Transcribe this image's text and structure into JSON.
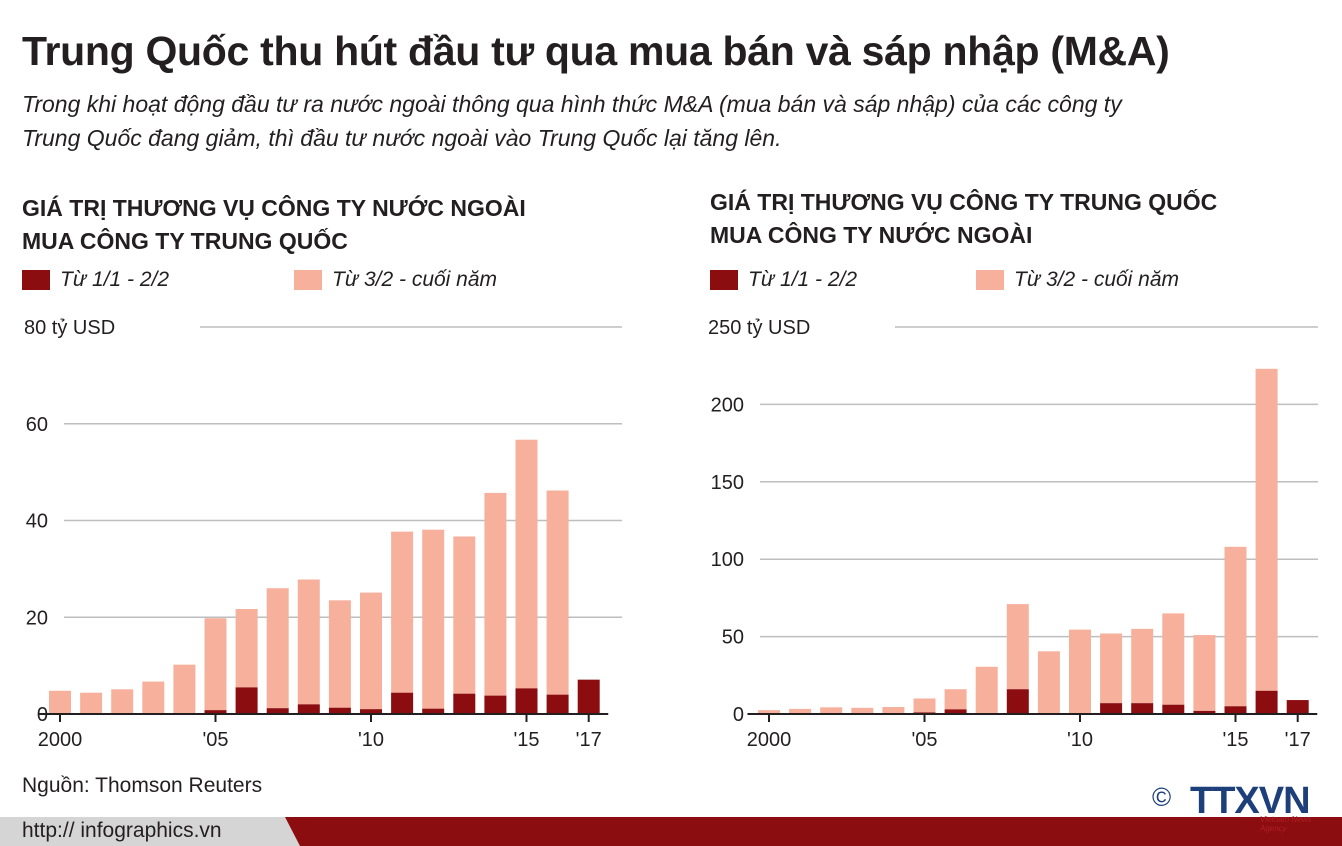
{
  "header": {
    "title": "Trung Quốc thu hút đầu tư qua mua bán và sáp nhập (M&A)",
    "subtitle_line1": "Trong khi hoạt động đầu tư ra nước ngoài thông qua hình thức M&A (mua bán và sáp nhập) của các công ty",
    "subtitle_line2": "Trung Quốc đang giảm, thì đầu tư nước ngoài vào Trung Quốc lại tăng lên."
  },
  "charts": [
    {
      "title_line1": "GIÁ TRỊ THƯƠNG VỤ CÔNG TY NƯỚC NGOÀI",
      "title_line2": "MUA CÔNG TY TRUNG QUỐC",
      "legend": [
        "Từ 1/1 - 2/2",
        "Từ 3/2 - cuối năm"
      ],
      "y_unit": "tỷ USD"
    },
    {
      "title_line1": "GIÁ TRỊ THƯƠNG VỤ CÔNG TY TRUNG QUỐC",
      "title_line2": "MUA CÔNG TY NƯỚC NGOÀI",
      "legend": [
        "Từ 1/1 - 2/2",
        "Từ 3/2 - cuối năm"
      ],
      "y_unit": "tỷ USD"
    }
  ],
  "chart_data": [
    {
      "type": "bar",
      "stacked": true,
      "title": "GIÁ TRỊ THƯƠNG VỤ CÔNG TY NƯỚC NGOÀI MUA CÔNG TY TRUNG QUỐC",
      "ylabel": "tỷ USD",
      "categories": [
        "2000",
        "2001",
        "2002",
        "2003",
        "2004",
        "2005",
        "2006",
        "2007",
        "2008",
        "2009",
        "2010",
        "2011",
        "2012",
        "2013",
        "2014",
        "2015",
        "2016",
        "2017"
      ],
      "x_tick_labels": [
        "2000",
        "'05",
        "'10",
        "'15",
        "'17"
      ],
      "x_tick_categories": [
        "2000",
        "2005",
        "2010",
        "2015",
        "2017"
      ],
      "y_ticks": [
        0,
        20,
        40,
        60,
        80
      ],
      "ylim": [
        0,
        80
      ],
      "grid": true,
      "legend_position": "top",
      "series": [
        {
          "name": "Từ 1/1 - 2/2",
          "color": "#8b0d10",
          "values": [
            0.1,
            0.1,
            0.1,
            0.2,
            0.1,
            0.8,
            5.5,
            1.2,
            2.0,
            1.3,
            1.0,
            4.4,
            1.1,
            4.2,
            3.8,
            5.3,
            4.0,
            7.1
          ]
        },
        {
          "name": "Từ 3/2 - cuối năm",
          "color": "#f6b09c",
          "values": [
            4.7,
            4.3,
            5.0,
            6.5,
            10.1,
            19.0,
            16.2,
            24.8,
            25.8,
            22.2,
            24.1,
            33.3,
            37.0,
            32.5,
            41.9,
            51.4,
            42.2,
            0
          ]
        }
      ]
    },
    {
      "type": "bar",
      "stacked": true,
      "title": "GIÁ TRỊ THƯƠNG VỤ CÔNG TY TRUNG QUỐC MUA CÔNG TY NƯỚC NGOÀI",
      "ylabel": "tỷ USD",
      "categories": [
        "2000",
        "2001",
        "2002",
        "2003",
        "2004",
        "2005",
        "2006",
        "2007",
        "2008",
        "2009",
        "2010",
        "2011",
        "2012",
        "2013",
        "2014",
        "2015",
        "2016",
        "2017"
      ],
      "x_tick_labels": [
        "2000",
        "'05",
        "'10",
        "'15",
        "'17"
      ],
      "x_tick_categories": [
        "2000",
        "2005",
        "2010",
        "2015",
        "2017"
      ],
      "y_ticks": [
        0,
        50,
        100,
        150,
        200,
        250
      ],
      "ylim": [
        0,
        250
      ],
      "grid": true,
      "legend_position": "top",
      "series": [
        {
          "name": "Từ 1/1 - 2/2",
          "color": "#8b0d10",
          "values": [
            0.5,
            0.3,
            0.3,
            0.5,
            0.5,
            1.0,
            3.0,
            0.5,
            16.0,
            0.5,
            0.5,
            7.0,
            7.0,
            6.0,
            2.0,
            5.0,
            15.0,
            9.0
          ]
        },
        {
          "name": "Từ 3/2 - cuối năm",
          "color": "#f6b09c",
          "values": [
            2.0,
            3.0,
            4.0,
            3.5,
            4.0,
            9.0,
            13.0,
            30.0,
            55.0,
            40.0,
            54.0,
            45.0,
            48.0,
            59.0,
            49.0,
            103.0,
            208.0,
            0
          ]
        }
      ]
    }
  ],
  "source": "Nguồn: Thomson Reuters",
  "footer": {
    "url": "http:// infographics.vn",
    "copyright_symbol": "©",
    "logo_text": "TTXVN",
    "logo_tagline": "Vietnam News Agency"
  }
}
